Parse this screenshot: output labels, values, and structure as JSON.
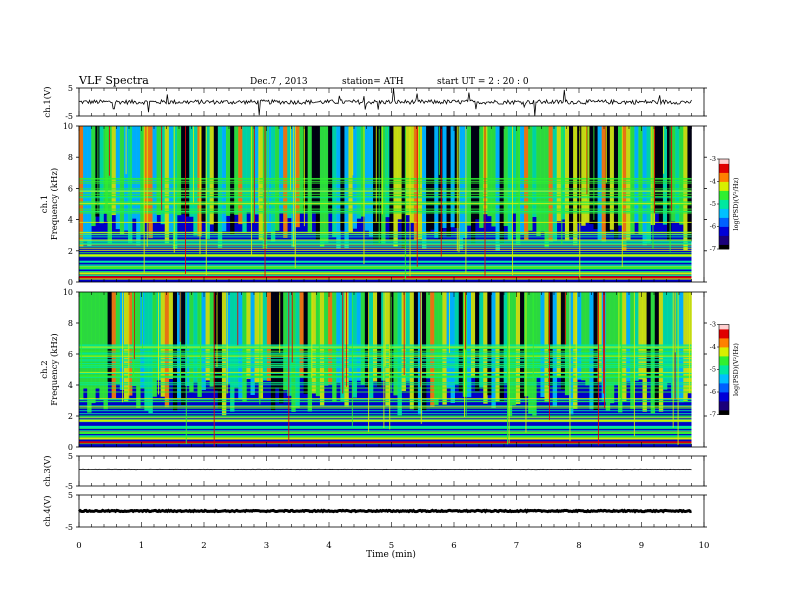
{
  "header": {
    "title": "VLF  Spectra",
    "date": "Dec.7  , 2013",
    "station": "station= ATH",
    "start": "start  UT  =   2  : 20 : 0"
  },
  "colors": {
    "spectrum": [
      "#000000",
      "#1a007a",
      "#0000d8",
      "#0060ff",
      "#00c0ff",
      "#00e8a0",
      "#30f030",
      "#d8f000",
      "#ff8000",
      "#e00000",
      "#ffd0d0"
    ]
  },
  "chart_data": [
    {
      "id": "ch1-waveform",
      "type": "line",
      "ylabel": "ch.1(V)",
      "ylim": [
        -5,
        5
      ],
      "yticks": [
        "5",
        "-5"
      ],
      "xlim": [
        0,
        10
      ],
      "baseline": 0,
      "last_x": 9.8
    },
    {
      "id": "ch1-spectrogram",
      "type": "heatmap",
      "ylabel_top": "ch.1",
      "ylabel": "Frequency  (kHz)",
      "ylim": [
        0,
        10
      ],
      "yticks": [
        "0",
        "2",
        "4",
        "6",
        "8",
        "10"
      ],
      "xlim": [
        0,
        10
      ],
      "last_x": 9.8,
      "colorbar": {
        "label": "log(PSD)(V²/Hz)",
        "range": [
          -7,
          -3
        ],
        "ticks": [
          "-3",
          "-4",
          "-5",
          "-6",
          "-7"
        ]
      }
    },
    {
      "id": "ch2-spectrogram",
      "type": "heatmap",
      "ylabel_top": "ch.2",
      "ylabel": "Frequency  (kHz)",
      "ylim": [
        0,
        10
      ],
      "yticks": [
        "0",
        "2",
        "4",
        "6",
        "8",
        "10"
      ],
      "xlim": [
        0,
        10
      ],
      "last_x": 9.8,
      "colorbar": {
        "label": "log(PSD)(V²/Hz)",
        "range": [
          -7,
          -3
        ],
        "ticks": [
          "-3",
          "-4",
          "-5",
          "-6",
          "-7"
        ]
      }
    },
    {
      "id": "ch3-waveform",
      "type": "line",
      "ylabel": "ch.3(V)",
      "ylim": [
        -5,
        5
      ],
      "yticks": [
        "5",
        "-5"
      ],
      "xlim": [
        0,
        10
      ],
      "baseline": 0.5,
      "last_x": 9.8
    },
    {
      "id": "ch4-waveform",
      "type": "line",
      "ylabel": "ch.4(V)",
      "ylim": [
        -5,
        5
      ],
      "yticks": [
        "5",
        "-5"
      ],
      "xlim": [
        0,
        10
      ],
      "baseline": 0,
      "last_x": 9.8
    }
  ],
  "x_axis": {
    "label": "Time  (min)",
    "ticks": [
      "0",
      "1",
      "2",
      "3",
      "4",
      "5",
      "6",
      "7",
      "8",
      "9",
      "10"
    ]
  }
}
